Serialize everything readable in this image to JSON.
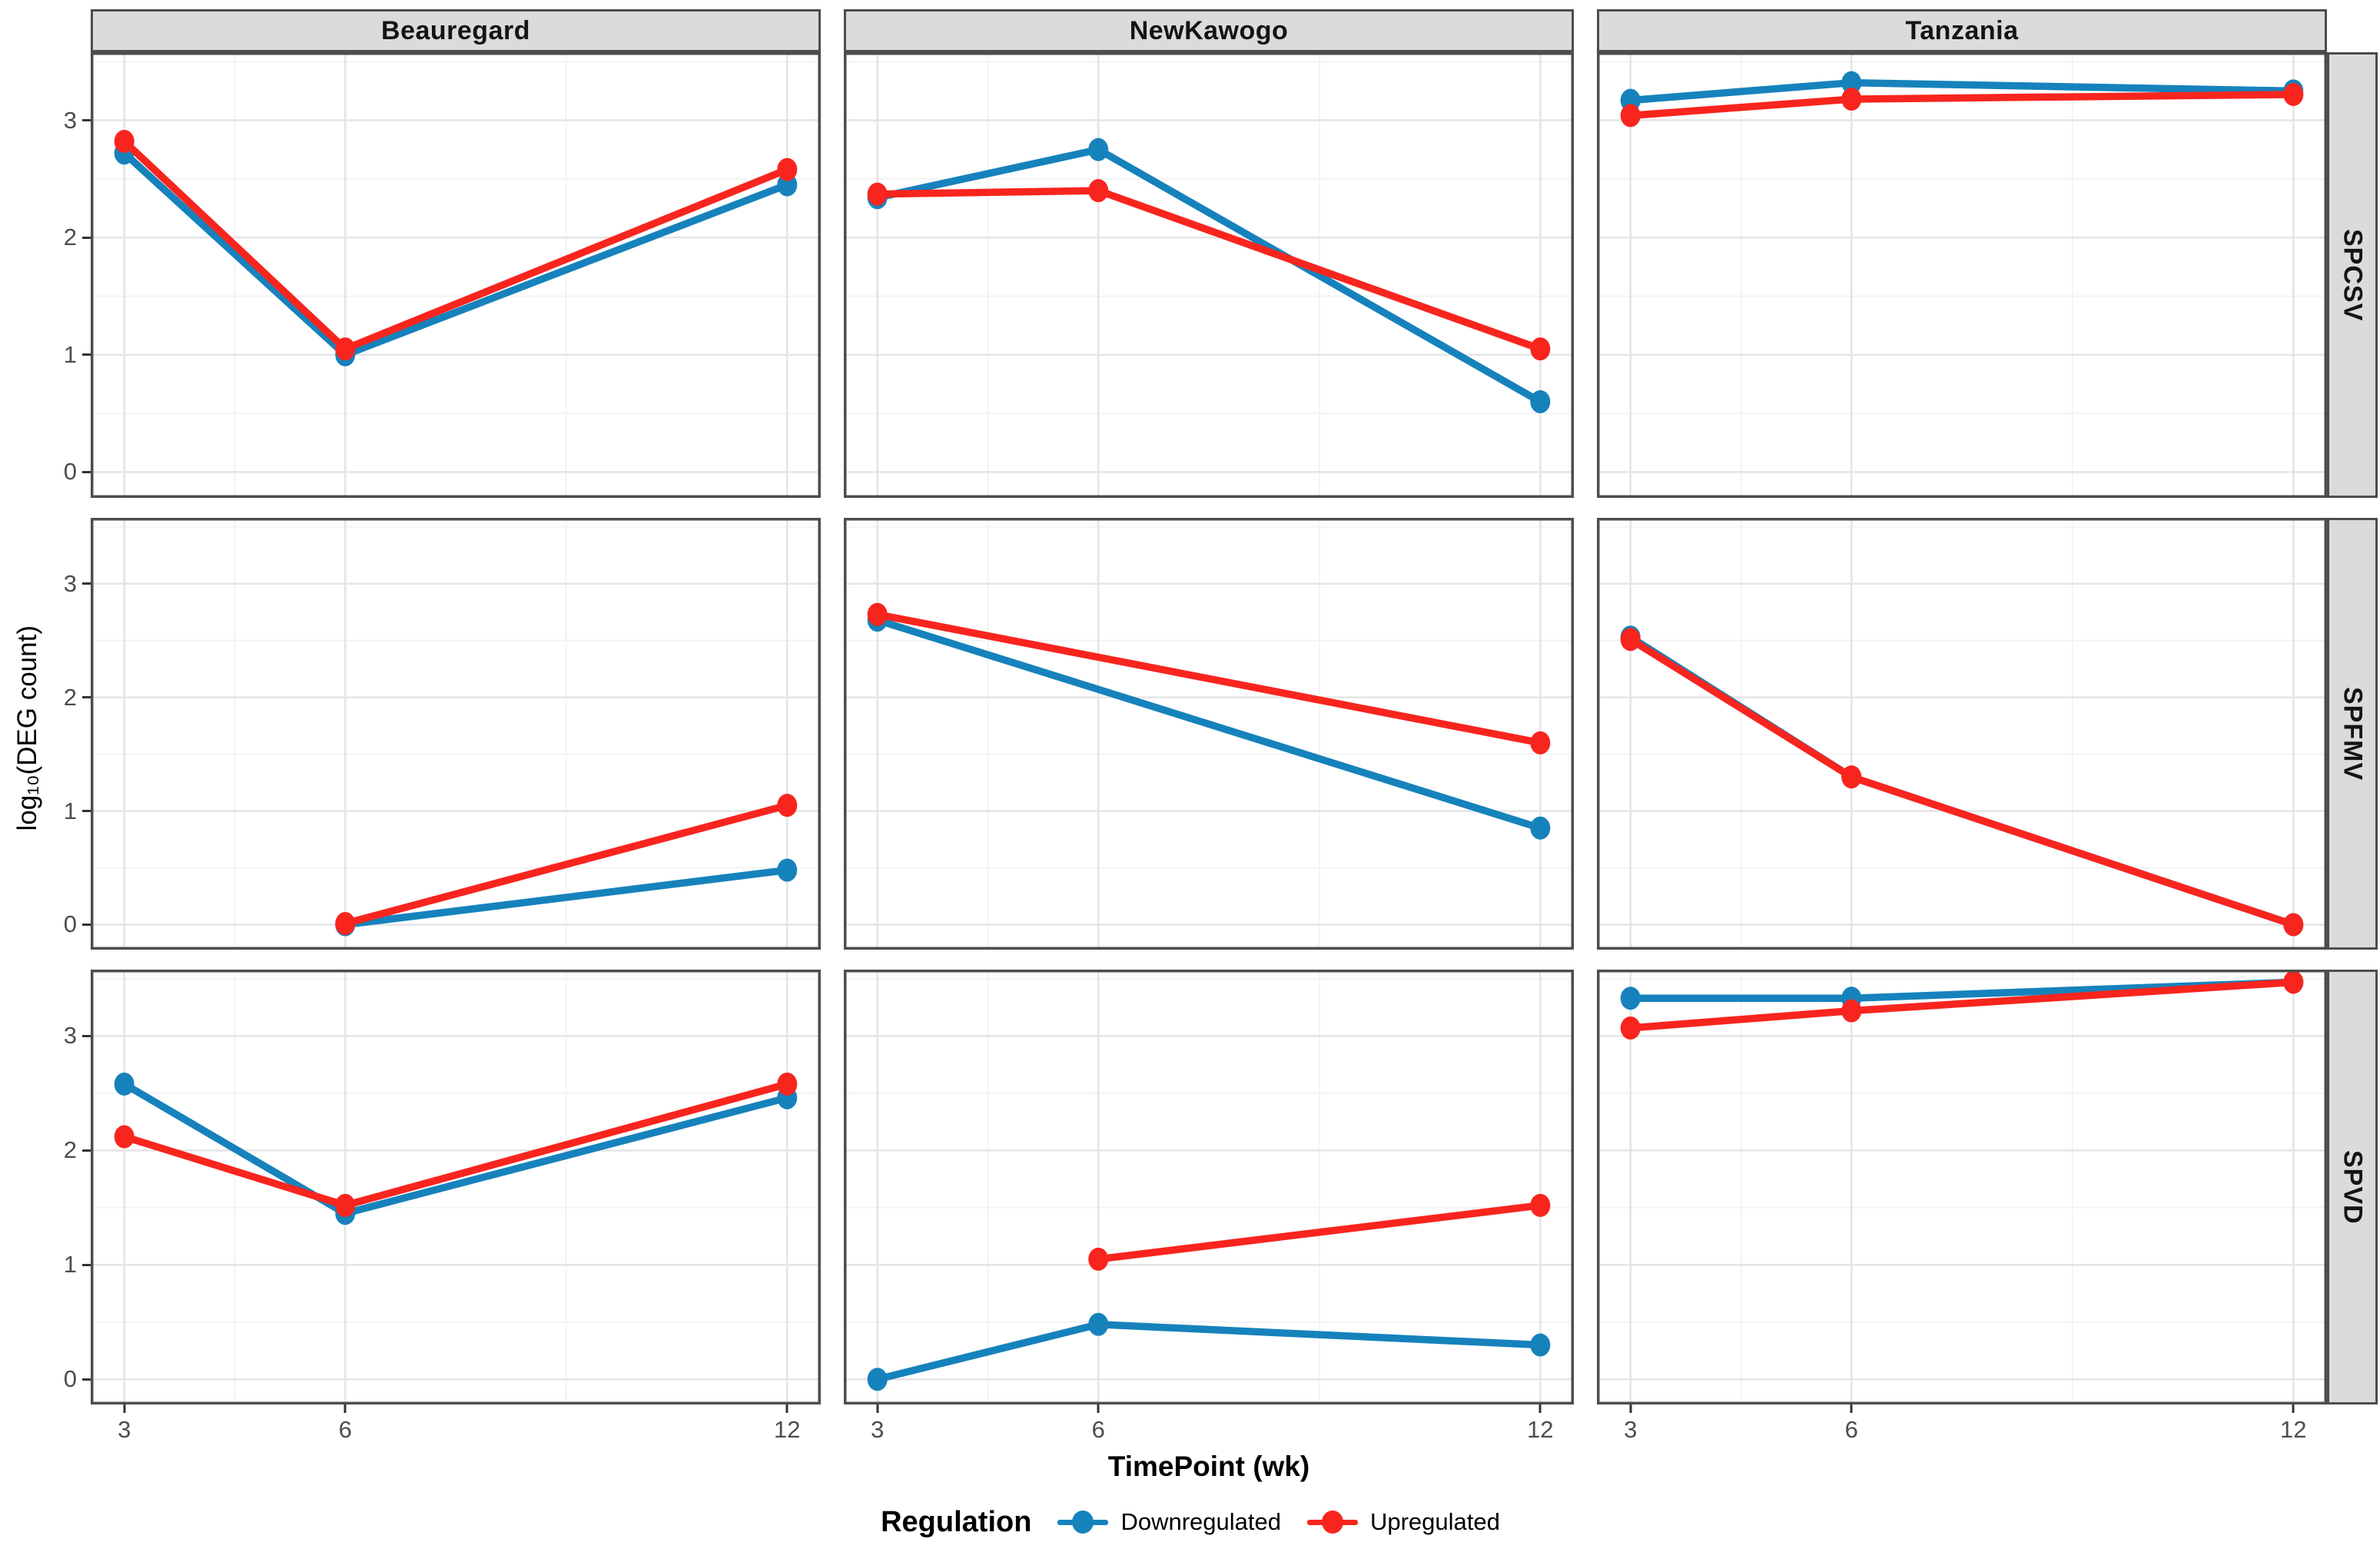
{
  "figure": {
    "x_axis_title": "TimePoint (wk)",
    "y_axis_title": "log₁₀(DEG count)",
    "col_facets": [
      "Beauregard",
      "NewKawogo",
      "Tanzania"
    ],
    "row_facets": [
      "SPCSV",
      "SPFMV",
      "SPVD"
    ]
  },
  "legend": {
    "title": "Regulation",
    "items": [
      {
        "label": "Downregulated",
        "color": "#1682BC"
      },
      {
        "label": "Upregulated",
        "color": "#F8251E"
      }
    ]
  },
  "colors": {
    "downregulated": "#1682BC",
    "upregulated": "#F8251E",
    "strip_fill": "#DBDBDB",
    "strip_border": "#4D4D4D",
    "panel_border": "#4D4D4D",
    "grid_major": "#E4E4E4",
    "grid_minor": "#F3F3F3",
    "axis_text": "#4D4D4D",
    "tick_mark": "#333333",
    "panel_background": "#FFFFFF"
  },
  "chart_data": {
    "type": "line",
    "title": "",
    "xlabel": "TimePoint (wk)",
    "ylabel": "log₁₀(DEG count)",
    "x_ticks": [
      3,
      6,
      12
    ],
    "y_ticks": [
      0,
      1,
      2,
      3
    ],
    "x_minor": [
      4.5,
      9
    ],
    "y_minor": [
      0.5,
      1.5,
      2.5,
      3.5
    ],
    "x_domain": [
      3,
      12
    ],
    "ylim": [
      -0.22,
      3.58
    ],
    "x_pad": 0.046,
    "grid": true,
    "legend_position": "bottom",
    "facet_rows": [
      "SPCSV",
      "SPFMV",
      "SPVD"
    ],
    "facet_cols": [
      "Beauregard",
      "NewKawogo",
      "Tanzania"
    ],
    "panels": [
      {
        "row": "SPCSV",
        "col": "Beauregard",
        "series": [
          {
            "name": "Downregulated",
            "points": [
              [
                3,
                2.72
              ],
              [
                6,
                1.0
              ],
              [
                12,
                2.45
              ]
            ]
          },
          {
            "name": "Upregulated",
            "points": [
              [
                3,
                2.82
              ],
              [
                6,
                1.05
              ],
              [
                12,
                2.58
              ]
            ]
          }
        ]
      },
      {
        "row": "SPCSV",
        "col": "NewKawogo",
        "series": [
          {
            "name": "Downregulated",
            "points": [
              [
                3,
                2.34
              ],
              [
                6,
                2.75
              ],
              [
                12,
                0.6
              ]
            ]
          },
          {
            "name": "Upregulated",
            "points": [
              [
                3,
                2.37
              ],
              [
                6,
                2.4
              ],
              [
                12,
                1.05
              ]
            ]
          }
        ]
      },
      {
        "row": "SPCSV",
        "col": "Tanzania",
        "series": [
          {
            "name": "Downregulated",
            "points": [
              [
                3,
                3.17
              ],
              [
                6,
                3.32
              ],
              [
                12,
                3.25
              ]
            ]
          },
          {
            "name": "Upregulated",
            "points": [
              [
                3,
                3.04
              ],
              [
                6,
                3.18
              ],
              [
                12,
                3.22
              ]
            ]
          }
        ]
      },
      {
        "row": "SPFMV",
        "col": "Beauregard",
        "series": [
          {
            "name": "Downregulated",
            "points": [
              [
                6,
                0.0
              ],
              [
                12,
                0.48
              ]
            ]
          },
          {
            "name": "Upregulated",
            "points": [
              [
                6,
                0.01
              ],
              [
                12,
                1.05
              ]
            ]
          }
        ]
      },
      {
        "row": "SPFMV",
        "col": "NewKawogo",
        "series": [
          {
            "name": "Downregulated",
            "points": [
              [
                3,
                2.68
              ],
              [
                12,
                0.85
              ]
            ]
          },
          {
            "name": "Upregulated",
            "points": [
              [
                3,
                2.73
              ],
              [
                12,
                1.6
              ]
            ]
          }
        ]
      },
      {
        "row": "SPFMV",
        "col": "Tanzania",
        "series": [
          {
            "name": "Downregulated",
            "points": [
              [
                3,
                2.53
              ],
              [
                6,
                1.3
              ],
              [
                12,
                0.0
              ]
            ]
          },
          {
            "name": "Upregulated",
            "points": [
              [
                3,
                2.51
              ],
              [
                6,
                1.3
              ],
              [
                12,
                0.0
              ]
            ]
          }
        ]
      },
      {
        "row": "SPVD",
        "col": "Beauregard",
        "series": [
          {
            "name": "Downregulated",
            "points": [
              [
                3,
                2.58
              ],
              [
                6,
                1.45
              ],
              [
                12,
                2.46
              ]
            ]
          },
          {
            "name": "Upregulated",
            "points": [
              [
                3,
                2.12
              ],
              [
                6,
                1.52
              ],
              [
                12,
                2.58
              ]
            ]
          }
        ]
      },
      {
        "row": "SPVD",
        "col": "NewKawogo",
        "series": [
          {
            "name": "Downregulated",
            "points": [
              [
                3,
                0.0
              ],
              [
                6,
                0.48
              ],
              [
                12,
                0.3
              ]
            ]
          },
          {
            "name": "Upregulated",
            "points": [
              [
                6,
                1.05
              ],
              [
                12,
                1.52
              ]
            ]
          }
        ]
      },
      {
        "row": "SPVD",
        "col": "Tanzania",
        "series": [
          {
            "name": "Downregulated",
            "points": [
              [
                3,
                3.33
              ],
              [
                6,
                3.33
              ],
              [
                12,
                3.47
              ]
            ]
          },
          {
            "name": "Upregulated",
            "points": [
              [
                3,
                3.07
              ],
              [
                6,
                3.22
              ],
              [
                12,
                3.47
              ]
            ]
          }
        ]
      }
    ]
  }
}
